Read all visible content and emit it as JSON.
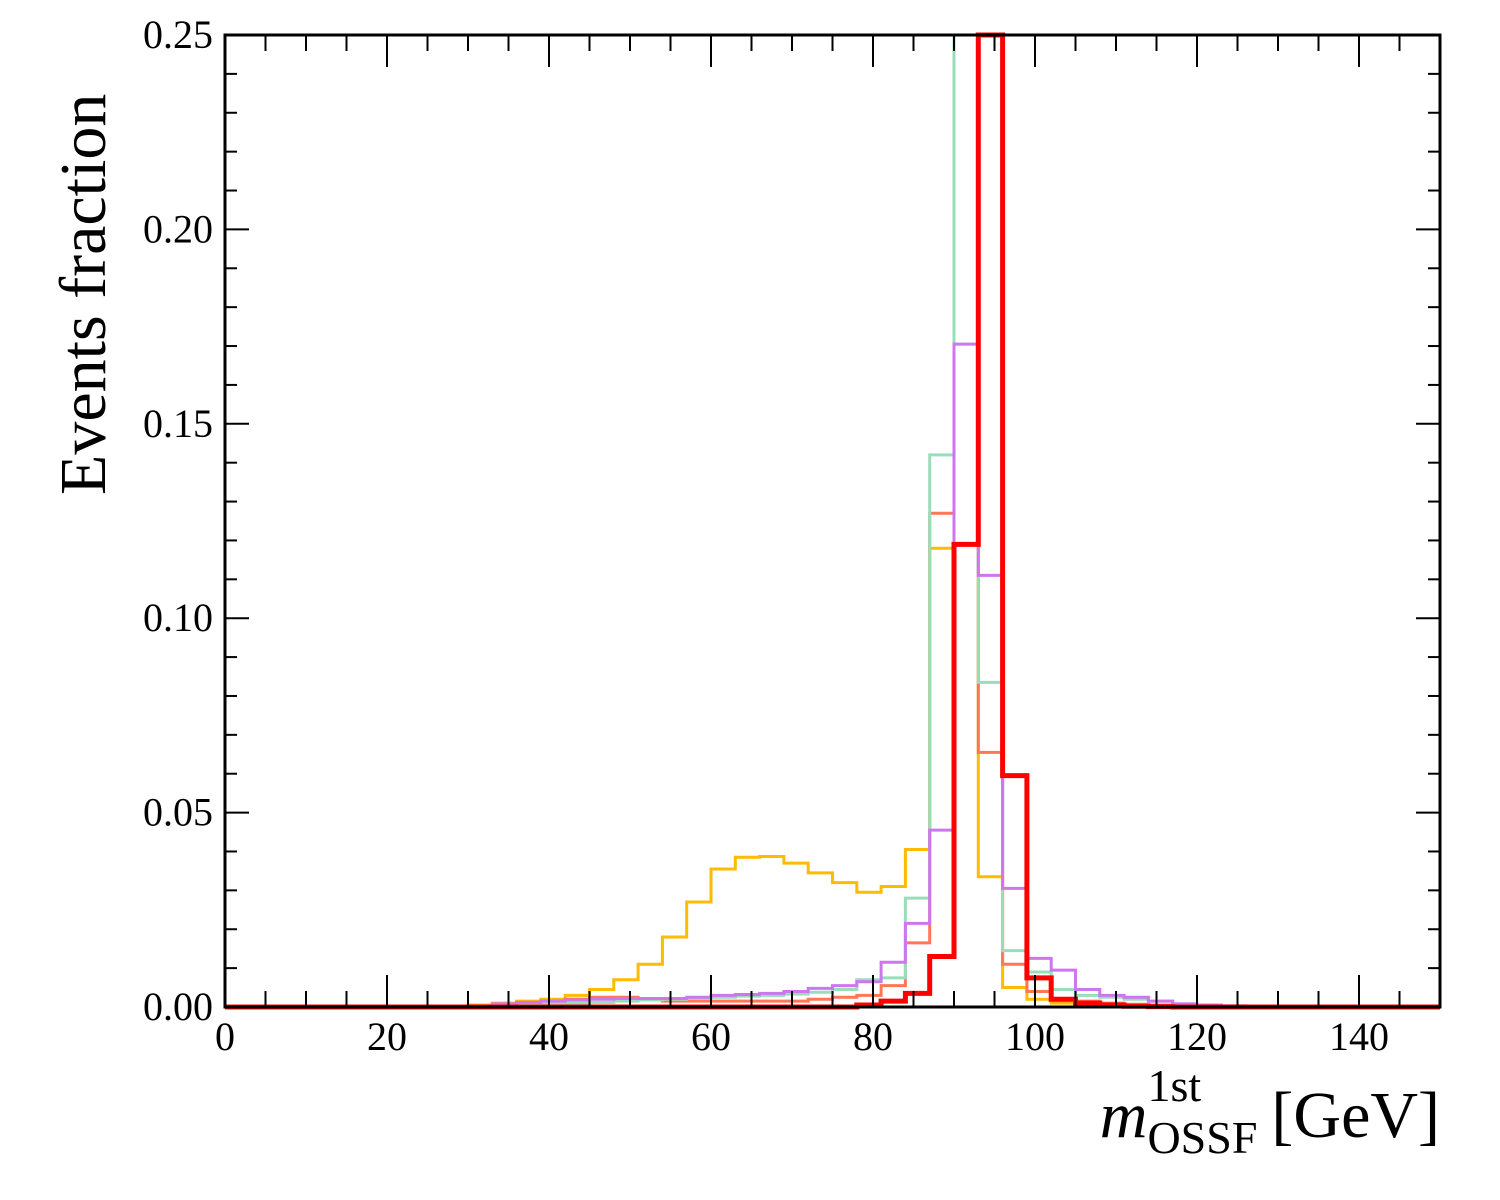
{
  "chart_data": {
    "type": "line",
    "ylabel": "Events fraction",
    "xlabel": {
      "symbol": "m",
      "superscript": "1st",
      "subscript": "OSSF",
      "unit": "[GeV]"
    },
    "xlim": [
      0,
      150
    ],
    "ylim": [
      0,
      0.25
    ],
    "x_ticks": [
      "0",
      "20",
      "40",
      "60",
      "80",
      "100",
      "120",
      "140"
    ],
    "y_ticks": [
      "0.00",
      "0.05",
      "0.10",
      "0.15",
      "0.20",
      "0.25"
    ],
    "grid": false,
    "legend": "none",
    "bin_edges": [
      0,
      3,
      6,
      9,
      12,
      15,
      18,
      21,
      24,
      27,
      30,
      33,
      36,
      39,
      42,
      45,
      48,
      51,
      54,
      57,
      60,
      63,
      66,
      69,
      72,
      75,
      78,
      81,
      84,
      87,
      90,
      93,
      96,
      99,
      102,
      105,
      108,
      111,
      114,
      117,
      120,
      123,
      126,
      129,
      132,
      135,
      138,
      141,
      144,
      147,
      150
    ],
    "series": [
      {
        "color": "#ffbb00",
        "width": 3,
        "values": [
          0,
          0,
          0,
          0,
          0,
          0,
          0,
          0,
          0,
          0.0002,
          0.0005,
          0.001,
          0.0015,
          0.002,
          0.003,
          0.0045,
          0.007,
          0.011,
          0.018,
          0.027,
          0.0355,
          0.0385,
          0.0387,
          0.037,
          0.0345,
          0.032,
          0.0295,
          0.031,
          0.0405,
          0.118,
          0.25,
          0.0335,
          0.005,
          0.002,
          0.001,
          0.0005,
          0.0003,
          0.0001,
          0,
          0,
          0,
          0,
          0,
          0,
          0,
          0,
          0,
          0,
          0,
          0
        ]
      },
      {
        "color": "#ff7755",
        "width": 3,
        "values": [
          0,
          0,
          0,
          0,
          0,
          0,
          0,
          0,
          0,
          0.0001,
          0.0003,
          0.0006,
          0.001,
          0.0015,
          0.002,
          0.0025,
          0.0025,
          0.002,
          0.0015,
          0.0015,
          0.0015,
          0.0015,
          0.0015,
          0.0015,
          0.002,
          0.0025,
          0.003,
          0.0055,
          0.0165,
          0.127,
          0.25,
          0.0655,
          0.011,
          0.004,
          0.002,
          0.0015,
          0.001,
          0.0007,
          0.0005,
          0.0003,
          0.0002,
          0.0001,
          0,
          0,
          0,
          0,
          0,
          0,
          0,
          0
        ]
      },
      {
        "color": "#99ddbb",
        "width": 3,
        "values": [
          0,
          0,
          0,
          0,
          0,
          0,
          0,
          0,
          0,
          0,
          0.0001,
          0.0003,
          0.0005,
          0.0008,
          0.001,
          0.0012,
          0.0015,
          0.0018,
          0.002,
          0.0022,
          0.0025,
          0.0028,
          0.003,
          0.0033,
          0.0038,
          0.0045,
          0.007,
          0.0075,
          0.028,
          0.142,
          0.25,
          0.0835,
          0.0145,
          0.009,
          0.0045,
          0.003,
          0.0025,
          0.002,
          0.0015,
          0.0008,
          0.0005,
          0.0003,
          0.0002,
          0.0001,
          0,
          0,
          0,
          0,
          0,
          0
        ]
      },
      {
        "color": "#cc77ee",
        "width": 3,
        "values": [
          0,
          0,
          0,
          0,
          0,
          0,
          0,
          0,
          0,
          0,
          0.0002,
          0.0008,
          0.0012,
          0.0015,
          0.0018,
          0.002,
          0.0022,
          0.0022,
          0.0022,
          0.0025,
          0.003,
          0.0032,
          0.0035,
          0.004,
          0.0048,
          0.0055,
          0.0065,
          0.0115,
          0.0215,
          0.0455,
          0.1705,
          0.111,
          0.0305,
          0.0125,
          0.0095,
          0.0045,
          0.003,
          0.0025,
          0.0015,
          0.0008,
          0.0005,
          0.0003,
          0.0002,
          0.0001,
          0,
          0,
          0,
          0,
          0,
          0
        ]
      },
      {
        "color": "#ff0000",
        "width": 5,
        "values": [
          0,
          0,
          0,
          0,
          0,
          0,
          0,
          0,
          0,
          0,
          0,
          0,
          0,
          0,
          0,
          0,
          0,
          0,
          0,
          0,
          0,
          0,
          0,
          0,
          0,
          0,
          0.0005,
          0.0015,
          0.0035,
          0.013,
          0.119,
          0.25,
          0.0595,
          0.0075,
          0.002,
          0.001,
          0.0005,
          0.0002,
          0.0001,
          0,
          0,
          0,
          0,
          0,
          0,
          0,
          0,
          0,
          0,
          0
        ]
      }
    ]
  }
}
